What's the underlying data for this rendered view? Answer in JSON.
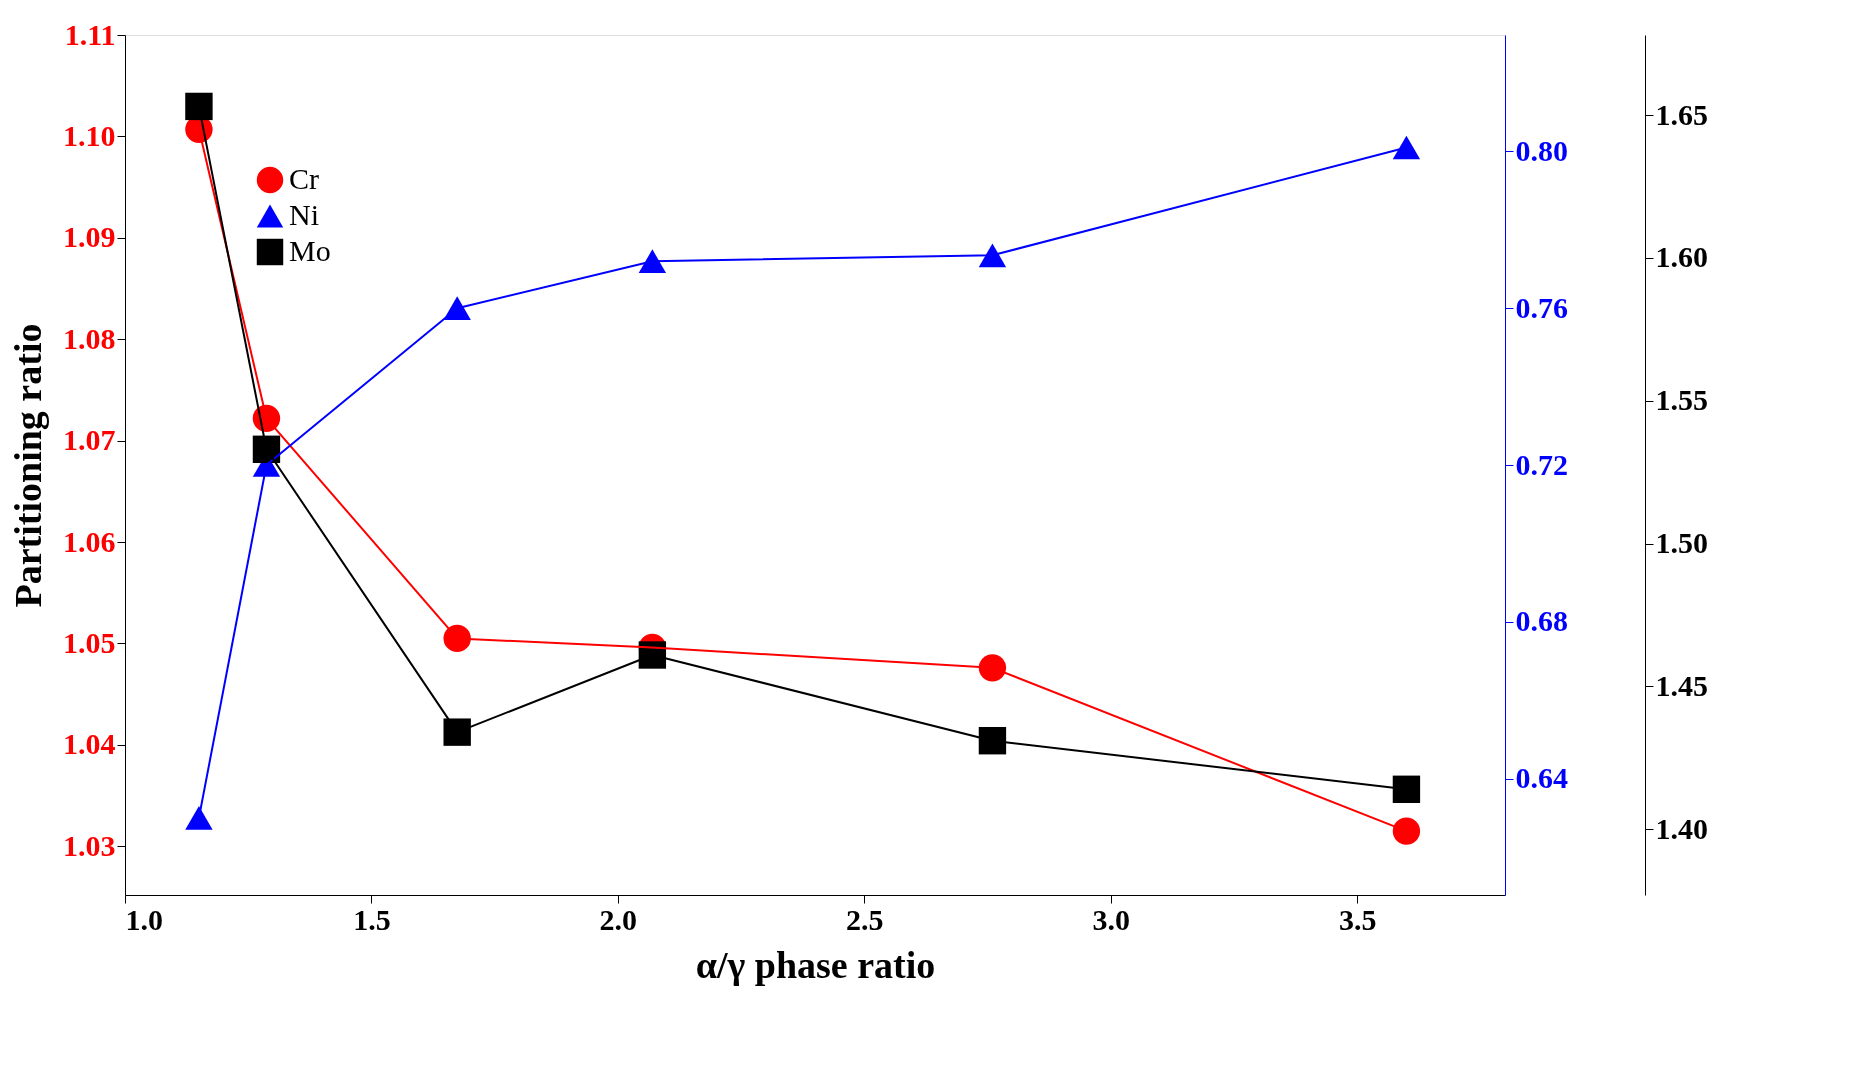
{
  "chart_data": {
    "type": "line",
    "xlabel": "α/γ phase ratio",
    "ylabel": "Partitioning ratio",
    "x": [
      1.15,
      1.287,
      1.674,
      2.07,
      2.76,
      3.6
    ],
    "xlim": [
      1.0,
      3.8
    ],
    "xticks": [
      {
        "value": 1.0,
        "label": "1.0"
      },
      1.5,
      {
        "value": 2.0,
        "label": "2.0"
      },
      2.5,
      {
        "value": 3.0,
        "label": "3.0"
      },
      3.5
    ],
    "ylim": [
      1.0252,
      1.11
    ],
    "yticks": [
      1.03,
      1.04,
      1.05,
      1.06,
      1.07,
      1.08,
      1.09,
      {
        "value": 1.1,
        "label": "1.10"
      },
      1.11
    ],
    "y2lim": [
      0.6103,
      0.8297
    ],
    "y2ticks": [
      0.64,
      {
        "value": 0.68,
        "label": "0.68"
      },
      0.72,
      0.76,
      {
        "value": 0.8,
        "label": "0.80"
      }
    ],
    "y3lim": [
      1.377,
      1.678
    ],
    "y3ticks": [
      {
        "value": 1.4,
        "label": "1.40"
      },
      1.45,
      {
        "value": 1.5,
        "label": "1.50"
      },
      1.55,
      {
        "value": 1.6,
        "label": "1.60"
      },
      1.65
    ],
    "legend": "top left",
    "grid": false,
    "line_style": "solid",
    "series": [
      {
        "name": "Cr",
        "color": "#ff0000",
        "marker": "circle",
        "axis": "y",
        "values": [
          1.1007,
          1.0722,
          1.0505,
          1.0496,
          1.0476,
          1.0315
        ]
      },
      {
        "name": "Ni",
        "color": "#0000ff",
        "marker": "triangle",
        "axis": "y2",
        "values": [
          0.63,
          0.72,
          0.76,
          0.772,
          0.7735,
          0.801
        ]
      },
      {
        "name": "Mo",
        "color": "#000000",
        "marker": "square",
        "axis": "y3",
        "values": [
          1.653,
          1.533,
          1.434,
          1.461,
          1.431,
          1.414
        ]
      }
    ]
  }
}
